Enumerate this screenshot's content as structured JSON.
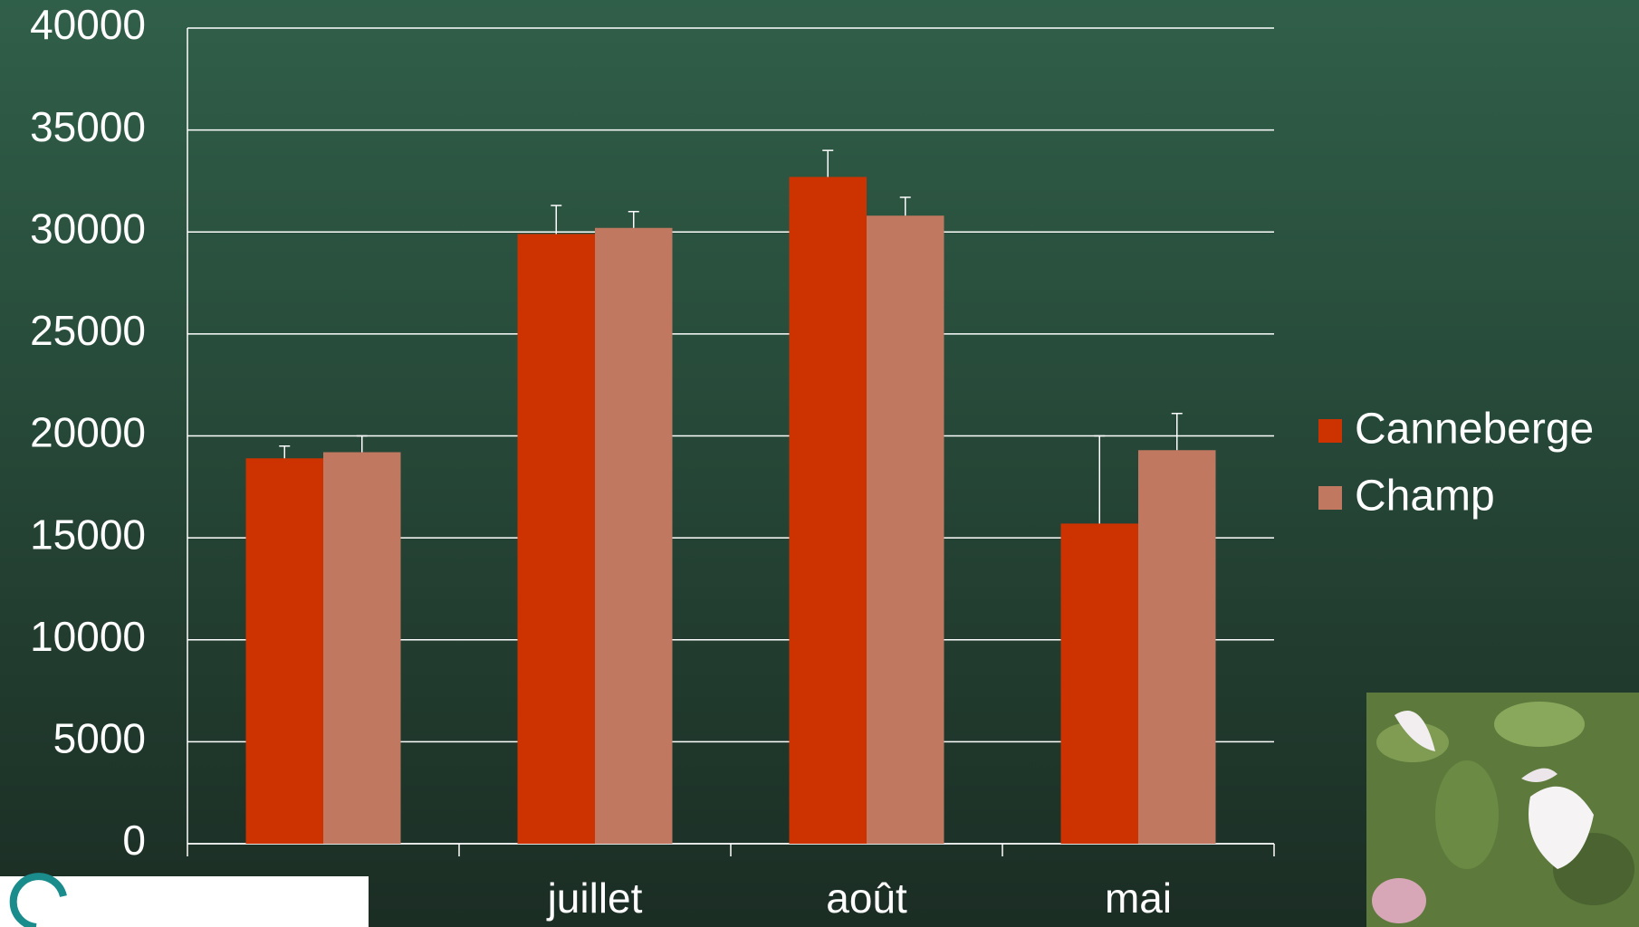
{
  "chart_data": {
    "type": "bar",
    "categories": [
      null,
      "juillet",
      "août",
      "mai"
    ],
    "series": [
      {
        "name": "Canneberge",
        "color": "#cc3300",
        "values": [
          18900,
          29900,
          32700,
          15700
        ],
        "errors": [
          600,
          1400,
          1300,
          4300
        ]
      },
      {
        "name": "Champ",
        "color": "#c07860",
        "values": [
          19200,
          30200,
          30800,
          19300
        ],
        "errors": [
          800,
          800,
          900,
          1800
        ]
      }
    ],
    "ylim": [
      0,
      40000
    ],
    "yticks": [
      0,
      5000,
      10000,
      15000,
      20000,
      25000,
      30000,
      35000,
      40000
    ],
    "grid": true,
    "legend": "right"
  }
}
